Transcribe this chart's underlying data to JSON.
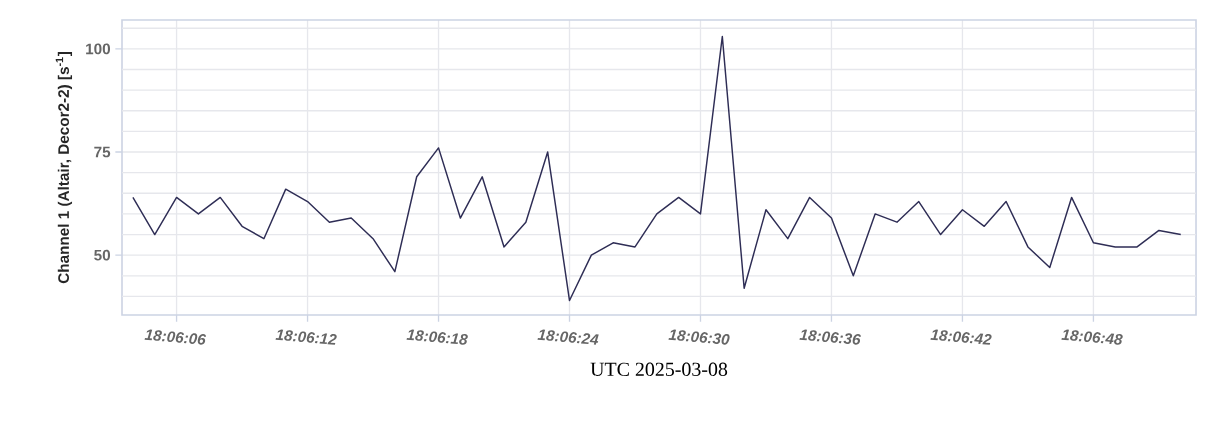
{
  "chart_data": {
    "type": "line",
    "xlabel": "UTC  2025-03-08",
    "ylabel": "Channel 1 (Altair, Decor2-2) [s$^{-1}$]",
    "x": [
      "2025-03-08T18:06:04",
      "2025-03-08T18:06:05",
      "2025-03-08T18:06:06",
      "2025-03-08T18:06:07",
      "2025-03-08T18:06:08",
      "2025-03-08T18:06:09",
      "2025-03-08T18:06:10",
      "2025-03-08T18:06:11",
      "2025-03-08T18:06:12",
      "2025-03-08T18:06:13",
      "2025-03-08T18:06:14",
      "2025-03-08T18:06:15",
      "2025-03-08T18:06:16",
      "2025-03-08T18:06:17",
      "2025-03-08T18:06:18",
      "2025-03-08T18:06:19",
      "2025-03-08T18:06:20",
      "2025-03-08T18:06:21",
      "2025-03-08T18:06:22",
      "2025-03-08T18:06:23",
      "2025-03-08T18:06:24",
      "2025-03-08T18:06:25",
      "2025-03-08T18:06:26",
      "2025-03-08T18:06:27",
      "2025-03-08T18:06:28",
      "2025-03-08T18:06:29",
      "2025-03-08T18:06:30",
      "2025-03-08T18:06:31",
      "2025-03-08T18:06:32",
      "2025-03-08T18:06:33",
      "2025-03-08T18:06:34",
      "2025-03-08T18:06:35",
      "2025-03-08T18:06:36",
      "2025-03-08T18:06:37",
      "2025-03-08T18:06:38",
      "2025-03-08T18:06:39",
      "2025-03-08T18:06:40",
      "2025-03-08T18:06:41",
      "2025-03-08T18:06:42",
      "2025-03-08T18:06:43",
      "2025-03-08T18:06:44",
      "2025-03-08T18:06:45",
      "2025-03-08T18:06:46",
      "2025-03-08T18:06:47",
      "2025-03-08T18:06:48",
      "2025-03-08T18:06:49",
      "2025-03-08T18:06:50",
      "2025-03-08T18:06:51",
      "2025-03-08T18:06:52"
    ],
    "series": [
      {
        "color": "#2e2d55",
        "values": [
          64,
          55,
          64,
          60,
          64,
          57,
          54,
          66,
          63,
          58,
          59,
          54,
          46,
          69,
          76,
          59,
          69,
          52,
          58,
          75,
          39,
          50,
          53,
          52,
          60,
          64,
          60,
          103,
          42,
          61,
          54,
          64,
          59,
          45,
          60,
          58,
          63,
          55,
          61,
          57,
          63,
          52,
          47,
          64,
          53,
          52,
          52,
          56,
          55
        ]
      }
    ],
    "xlim": [
      "2025-03-08T18:06:03.5",
      "2025-03-08T18:06:52.7"
    ],
    "xticks": [
      {
        "value": "2025-03-08T18:06:06",
        "label": "18:06:06"
      },
      {
        "value": "2025-03-08T18:06:12",
        "label": "18:06:12"
      },
      {
        "value": "2025-03-08T18:06:18",
        "label": "18:06:18"
      },
      {
        "value": "2025-03-08T18:06:24",
        "label": "18:06:24"
      },
      {
        "value": "2025-03-08T18:06:30",
        "label": "18:06:30"
      },
      {
        "value": "2025-03-08T18:06:36",
        "label": "18:06:36"
      },
      {
        "value": "2025-03-08T18:06:42",
        "label": "18:06:42"
      },
      {
        "value": "2025-03-08T18:06:48",
        "label": "18:06:48"
      }
    ],
    "ylim": [
      35.5,
      107
    ],
    "yticks": [
      {
        "value": 40,
        "label": null
      },
      {
        "value": 45,
        "label": null
      },
      50,
      {
        "value": 55,
        "label": null
      },
      {
        "value": 60,
        "label": null
      },
      {
        "value": 65,
        "label": null
      },
      {
        "value": 70,
        "label": null
      },
      75,
      {
        "value": 80,
        "label": null
      },
      {
        "value": 85,
        "label": null
      },
      {
        "value": 90,
        "label": null
      },
      {
        "value": 95,
        "label": null
      },
      100,
      {
        "value": 105,
        "label": null
      }
    ],
    "grid": true,
    "marker": "none",
    "line_style": "solid"
  }
}
